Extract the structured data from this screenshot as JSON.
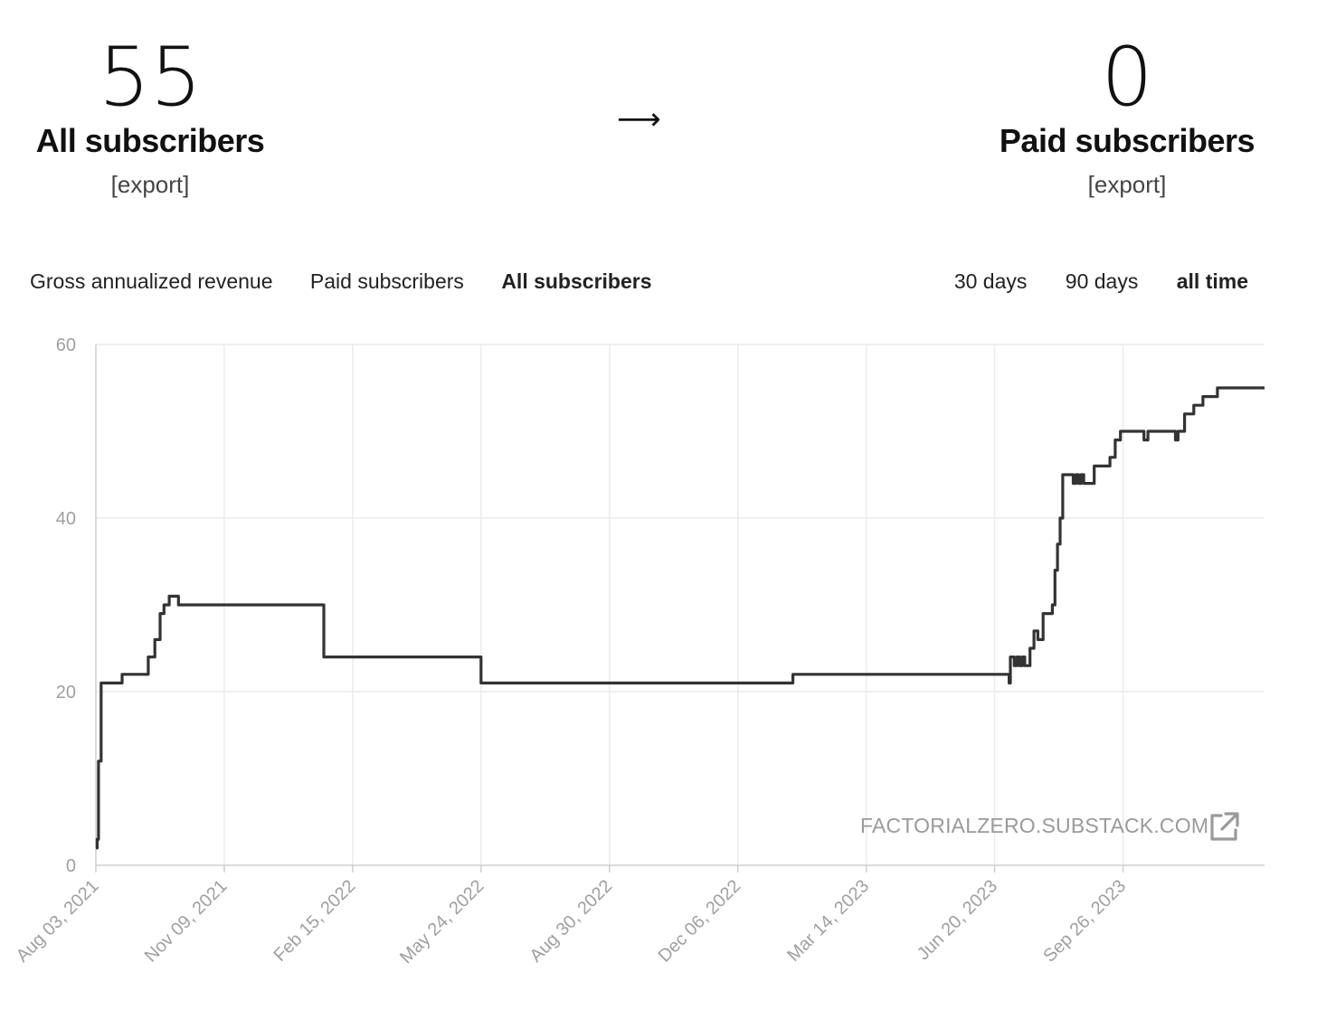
{
  "summary": {
    "left": {
      "count": "55",
      "label": "All subscribers",
      "export": "[export]"
    },
    "arrow": "⟶",
    "right": {
      "count": "0",
      "label": "Paid subscribers",
      "export": "[export]"
    }
  },
  "metric_tabs": [
    {
      "label": "Gross annualized revenue",
      "active": false
    },
    {
      "label": "Paid subscribers",
      "active": false
    },
    {
      "label": "All subscribers",
      "active": true
    }
  ],
  "range_tabs": [
    {
      "label": "30 days",
      "active": false
    },
    {
      "label": "90 days",
      "active": false
    },
    {
      "label": "all time",
      "active": true
    }
  ],
  "watermark": "FACTORIALZERO.SUBSTACK.COM",
  "icons": {
    "external": "external-link-icon"
  },
  "colors": {
    "line": "#333333",
    "grid": "#ececec",
    "axis_text": "#a0a0a0",
    "axis": "#cfcfcf"
  },
  "chart_data": {
    "type": "line",
    "title": "",
    "xlabel": "",
    "ylabel": "",
    "ylim": [
      0,
      60
    ],
    "yticks": [
      0,
      20,
      40,
      60
    ],
    "xlim": [
      "2021-08-03",
      "2024-01-12"
    ],
    "xticks": [
      {
        "date": "2021-08-03",
        "label": "Aug 03, 2021"
      },
      {
        "date": "2021-11-09",
        "label": "Nov 09, 2021"
      },
      {
        "date": "2022-02-15",
        "label": "Feb 15, 2022"
      },
      {
        "date": "2022-05-24",
        "label": "May 24, 2022"
      },
      {
        "date": "2022-08-30",
        "label": "Aug 30, 2022"
      },
      {
        "date": "2022-12-06",
        "label": "Dec 06, 2022"
      },
      {
        "date": "2023-03-14",
        "label": "Mar 14, 2023"
      },
      {
        "date": "2023-06-20",
        "label": "Jun 20, 2023"
      },
      {
        "date": "2023-09-26",
        "label": "Sep 26, 2023"
      }
    ],
    "grid": true,
    "series": [
      {
        "step": true,
        "points": [
          [
            "2021-08-03",
            2
          ],
          [
            "2021-08-04",
            3
          ],
          [
            "2021-08-05",
            12
          ],
          [
            "2021-08-07",
            21
          ],
          [
            "2021-08-23",
            22
          ],
          [
            "2021-09-12",
            24
          ],
          [
            "2021-09-17",
            26
          ],
          [
            "2021-09-21",
            29
          ],
          [
            "2021-09-24",
            30
          ],
          [
            "2021-09-28",
            31
          ],
          [
            "2021-10-05",
            30
          ],
          [
            "2022-01-24",
            24
          ],
          [
            "2022-05-24",
            21
          ],
          [
            "2023-01-17",
            22
          ],
          [
            "2023-07-01",
            21
          ],
          [
            "2023-07-02",
            24
          ],
          [
            "2023-07-05",
            23
          ],
          [
            "2023-07-07",
            24
          ],
          [
            "2023-07-09",
            23
          ],
          [
            "2023-07-11",
            24
          ],
          [
            "2023-07-13",
            23
          ],
          [
            "2023-07-17",
            25
          ],
          [
            "2023-07-20",
            27
          ],
          [
            "2023-07-23",
            26
          ],
          [
            "2023-07-27",
            29
          ],
          [
            "2023-08-03",
            30
          ],
          [
            "2023-08-05",
            34
          ],
          [
            "2023-08-07",
            37
          ],
          [
            "2023-08-09",
            40
          ],
          [
            "2023-08-11",
            45
          ],
          [
            "2023-08-19",
            44
          ],
          [
            "2023-08-21",
            45
          ],
          [
            "2023-08-23",
            44
          ],
          [
            "2023-08-25",
            45
          ],
          [
            "2023-08-27",
            44
          ],
          [
            "2023-09-04",
            46
          ],
          [
            "2023-09-16",
            47
          ],
          [
            "2023-09-20",
            49
          ],
          [
            "2023-09-24",
            50
          ],
          [
            "2023-10-12",
            49
          ],
          [
            "2023-10-15",
            50
          ],
          [
            "2023-11-05",
            49
          ],
          [
            "2023-11-07",
            50
          ],
          [
            "2023-11-12",
            52
          ],
          [
            "2023-11-19",
            53
          ],
          [
            "2023-11-26",
            54
          ],
          [
            "2023-12-07",
            55
          ],
          [
            "2024-01-12",
            55
          ]
        ]
      }
    ]
  }
}
